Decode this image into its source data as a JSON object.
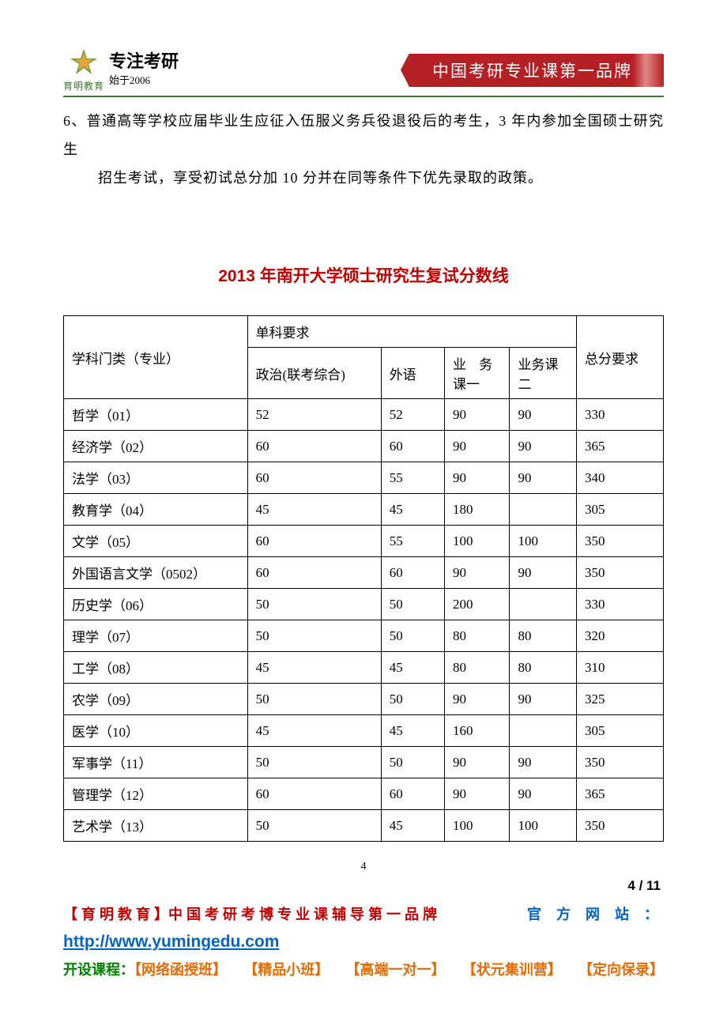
{
  "header": {
    "logo_name": "育明教育",
    "slogan": "专注考研",
    "since": "始于2006",
    "banner": "中国考研专业课第一品牌"
  },
  "body": {
    "para_line1": "6、普通高等学校应届毕业生应征入伍服义务兵役退役后的考生，3 年内参加全国硕士研究生",
    "para_line2": "招生考试，享受初试总分加 10 分并在同等条件下优先录取的政策。"
  },
  "title": "2013 年南开大学硕士研究生复试分数线",
  "table": {
    "headers": {
      "subject": "学科门类（专业）",
      "section": "单科要求",
      "politics": "政治(联考综合)",
      "foreign": "外语",
      "course1_l1": "业 务",
      "course1_l2": "课一",
      "course2_l1": "业务课",
      "course2_l2": "二",
      "total": "总分要求"
    },
    "rows": [
      {
        "subject": "哲学（01）",
        "pol": "52",
        "lang": "52",
        "c1": "90",
        "c2": "90",
        "total": "330"
      },
      {
        "subject": "经济学（02）",
        "pol": "60",
        "lang": "60",
        "c1": "90",
        "c2": "90",
        "total": "365"
      },
      {
        "subject": "法学（03）",
        "pol": "60",
        "lang": "55",
        "c1": "90",
        "c2": "90",
        "total": "340"
      },
      {
        "subject": "教育学（04）",
        "pol": "45",
        "lang": "45",
        "c1": "180",
        "c2": "",
        "total": "305"
      },
      {
        "subject": "文学（05）",
        "pol": "60",
        "lang": "55",
        "c1": "100",
        "c2": "100",
        "total": "350"
      },
      {
        "subject": "外国语言文学（0502）",
        "pol": "60",
        "lang": "60",
        "c1": "90",
        "c2": "90",
        "total": "350"
      },
      {
        "subject": "历史学（06）",
        "pol": "50",
        "lang": "50",
        "c1": "200",
        "c2": "",
        "total": "330"
      },
      {
        "subject": "理学（07）",
        "pol": "50",
        "lang": "50",
        "c1": "80",
        "c2": "80",
        "total": "320"
      },
      {
        "subject": "工学（08）",
        "pol": "45",
        "lang": "45",
        "c1": "80",
        "c2": "80",
        "total": "310"
      },
      {
        "subject": "农学（09）",
        "pol": "50",
        "lang": "50",
        "c1": "90",
        "c2": "90",
        "total": "325"
      },
      {
        "subject": "医学（10）",
        "pol": "45",
        "lang": "45",
        "c1": "160",
        "c2": "",
        "total": "305"
      },
      {
        "subject": "军事学（11）",
        "pol": "50",
        "lang": "50",
        "c1": "90",
        "c2": "90",
        "total": "350"
      },
      {
        "subject": "管理学（12）",
        "pol": "60",
        "lang": "60",
        "c1": "90",
        "c2": "90",
        "total": "365"
      },
      {
        "subject": "艺术学（13）",
        "pol": "50",
        "lang": "45",
        "c1": "100",
        "c2": "100",
        "total": "350"
      }
    ]
  },
  "footer": {
    "small_page": "4",
    "page": "4 / 11",
    "brand_prefix": "【 育 明 教 育 】",
    "brand_text": "中 国 考 研 考 博 专 业 课 辅 导 第 一 品 牌",
    "site_label": "官 方 网 站 ：",
    "url": "http://www.yumingedu.com",
    "courses_label": "开设课程：",
    "c1": "【网络函授班】",
    "c2": "【精品小班】",
    "c3": "【高端一对一】",
    "c4": "【状元集训营】",
    "c5": "【定向保录】"
  },
  "colors": {
    "brand_green": "#3a7a2a",
    "banner_bg": "#b52024",
    "title_red": "#c00000",
    "link_blue": "#0563c1",
    "course_green": "#008000",
    "orange": "#e36c09"
  }
}
